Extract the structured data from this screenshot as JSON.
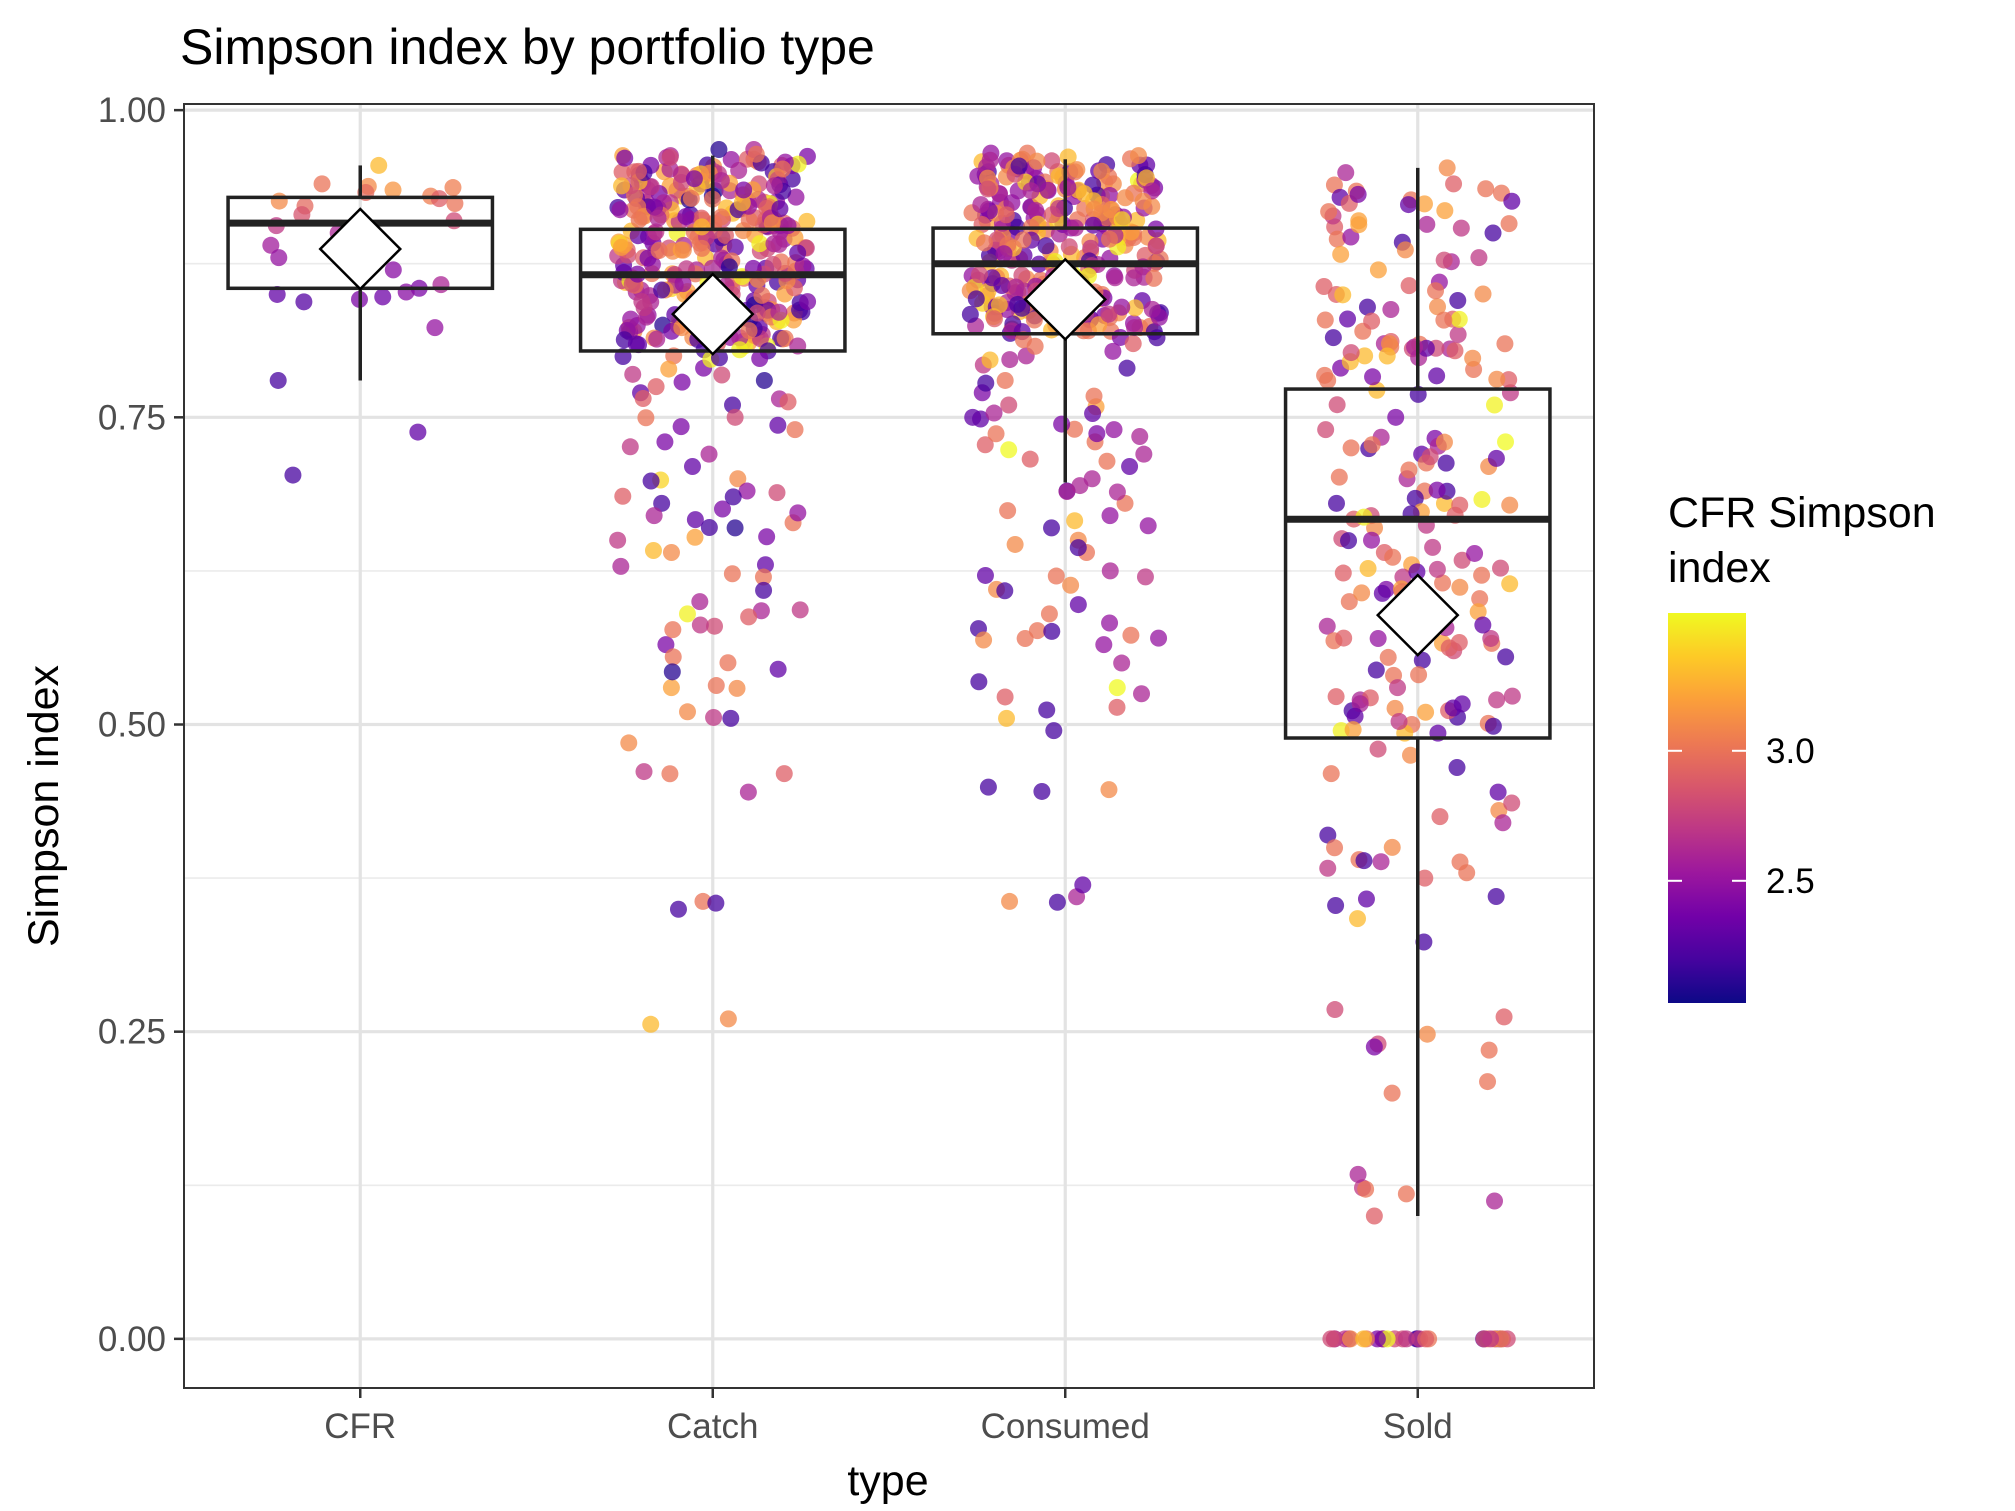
{
  "chart_data": {
    "type": "box",
    "title": "Simpson index by portfolio type",
    "xlabel": "type",
    "ylabel": "Simpson index",
    "categories": [
      "CFR",
      "Catch",
      "Consumed",
      "Sold"
    ],
    "ylim": [
      -0.04,
      1.005
    ],
    "yticks": [
      0.0,
      0.25,
      0.5,
      0.75,
      1.0
    ],
    "ytick_labels": [
      "0.00",
      "0.25",
      "0.50",
      "0.75",
      "1.00"
    ],
    "grid": true,
    "boxes": [
      {
        "category": "CFR",
        "lower_whisker": 0.78,
        "q1": 0.855,
        "median": 0.908,
        "q3": 0.929,
        "upper_whisker": 0.955,
        "mean": 0.887
      },
      {
        "category": "Catch",
        "lower_whisker": 0.804,
        "q1": 0.804,
        "median": 0.866,
        "q3": 0.903,
        "upper_whisker": 0.963,
        "mean": 0.834
      },
      {
        "category": "Consumed",
        "lower_whisker": 0.697,
        "q1": 0.818,
        "median": 0.875,
        "q3": 0.904,
        "upper_whisker": 0.96,
        "mean": 0.846
      },
      {
        "category": "Sold",
        "lower_whisker": 0.1,
        "q1": 0.489,
        "median": 0.667,
        "q3": 0.773,
        "upper_whisker": 0.953,
        "mean": 0.589
      }
    ],
    "points": {
      "CFR": {
        "y": [
          0.955,
          0.94,
          0.938,
          0.937,
          0.935,
          0.933,
          0.93,
          0.928,
          0.926,
          0.924,
          0.922,
          0.915,
          0.91,
          0.906,
          0.9,
          0.89,
          0.88,
          0.87,
          0.858,
          0.855,
          0.852,
          0.85,
          0.848,
          0.846,
          0.844,
          0.823,
          0.78,
          0.738,
          0.703
        ],
        "color": [
          3.3,
          3.0,
          3.1,
          3.05,
          3.15,
          2.95,
          3.05,
          2.9,
          3.1,
          3.0,
          2.95,
          2.85,
          2.8,
          2.7,
          2.6,
          2.55,
          2.5,
          2.45,
          2.6,
          2.4,
          2.45,
          2.3,
          2.35,
          2.4,
          2.25,
          2.5,
          2.2,
          2.3,
          2.2
        ]
      },
      "Catch": {
        "y": [
          0.963,
          0.96,
          0.958,
          0.955,
          0.95,
          0.946,
          0.94,
          0.935,
          0.93,
          0.925,
          0.92,
          0.915,
          0.91,
          0.905,
          0.9,
          0.895,
          0.89,
          0.885,
          0.88,
          0.875,
          0.87,
          0.865,
          0.86,
          0.855,
          0.85,
          0.845,
          0.84,
          0.835,
          0.83,
          0.825,
          0.82,
          0.815,
          0.81,
          0.805,
          0.8,
          0.79,
          0.785,
          0.78,
          0.775,
          0.77,
          0.765,
          0.76,
          0.75,
          0.74,
          0.73,
          0.72,
          0.71,
          0.7,
          0.69,
          0.68,
          0.67,
          0.66,
          0.65,
          0.64,
          0.63,
          0.62,
          0.6,
          0.59,
          0.58,
          0.565,
          0.555,
          0.545,
          0.53,
          0.505,
          0.485,
          0.46,
          0.445,
          0.356,
          0.256
        ],
        "color": [
          3.2,
          3.1,
          3.0,
          2.9,
          2.2,
          3.3,
          2.8,
          2.3,
          3.4,
          2.6,
          3.0,
          2.2,
          3.2,
          2.7,
          3.5,
          2.5,
          3.1,
          2.9,
          3.3,
          2.4,
          2.6,
          3.0,
          2.2,
          2.8,
          3.2,
          2.3,
          3.0,
          2.6,
          2.7,
          2.1,
          3.1,
          2.5,
          2.9,
          2.2,
          3.0,
          2.4,
          2.7,
          2.1,
          2.9,
          2.3,
          2.6,
          2.2,
          2.8,
          3.0,
          2.4,
          2.6,
          2.3,
          3.1,
          2.5,
          2.2,
          2.6,
          2.1,
          2.7,
          3.1,
          2.3,
          3.0,
          2.6,
          3.5,
          2.8,
          2.4,
          3.0,
          2.3,
          3.2,
          2.2,
          3.1,
          2.9,
          2.6,
          3.0,
          3.3
        ],
        "count": 420
      },
      "Consumed": {
        "y": [
          0.96,
          0.958,
          0.955,
          0.95,
          0.945,
          0.94,
          0.935,
          0.93,
          0.925,
          0.92,
          0.915,
          0.91,
          0.905,
          0.9,
          0.895,
          0.89,
          0.885,
          0.88,
          0.875,
          0.87,
          0.865,
          0.86,
          0.855,
          0.85,
          0.845,
          0.84,
          0.835,
          0.83,
          0.825,
          0.82,
          0.815,
          0.81,
          0.8,
          0.79,
          0.78,
          0.77,
          0.76,
          0.75,
          0.74,
          0.73,
          0.72,
          0.71,
          0.7,
          0.69,
          0.68,
          0.67,
          0.66,
          0.65,
          0.64,
          0.625,
          0.61,
          0.59,
          0.578,
          0.57,
          0.565,
          0.55,
          0.53,
          0.525,
          0.505,
          0.495,
          0.449,
          0.447,
          0.356
        ],
        "color": [
          3.2,
          3.3,
          2.9,
          3.0,
          2.2,
          3.1,
          2.7,
          3.4,
          2.5,
          3.0,
          2.3,
          3.2,
          2.8,
          3.5,
          2.4,
          3.1,
          2.6,
          3.0,
          2.2,
          2.9,
          3.3,
          2.5,
          2.7,
          3.0,
          2.3,
          2.6,
          3.1,
          2.2,
          2.8,
          3.0,
          2.4,
          2.9,
          2.6,
          2.2,
          3.0,
          2.4,
          2.8,
          2.3,
          2.5,
          3.0,
          2.6,
          2.3,
          2.6,
          2.2,
          3.0,
          2.5,
          2.2,
          3.1,
          3.0,
          2.6,
          3.1,
          3.0,
          2.2,
          3.0,
          2.5,
          2.6,
          3.6,
          2.6,
          3.3,
          2.2,
          2.2,
          3.1,
          3.1
        ],
        "count": 380
      },
      "Sold": {
        "y": [
          0.953,
          0.927,
          0.91,
          0.905,
          0.9,
          0.895,
          0.88,
          0.87,
          0.86,
          0.85,
          0.84,
          0.83,
          0.82,
          0.81,
          0.8,
          0.79,
          0.78,
          0.77,
          0.76,
          0.75,
          0.74,
          0.73,
          0.72,
          0.71,
          0.7,
          0.69,
          0.68,
          0.67,
          0.66,
          0.65,
          0.64,
          0.63,
          0.62,
          0.61,
          0.6,
          0.59,
          0.58,
          0.57,
          0.56,
          0.555,
          0.54,
          0.53,
          0.52,
          0.51,
          0.5,
          0.495,
          0.48,
          0.475,
          0.465,
          0.46,
          0.445,
          0.43,
          0.425,
          0.42,
          0.41,
          0.4,
          0.39,
          0.383,
          0.375,
          0.36,
          0.358,
          0.342,
          0.323,
          0.268,
          0.262,
          0.24,
          0.235,
          0.2,
          0.123,
          0.118,
          0.1
        ],
        "color": [
          3.1,
          3.0,
          3.2,
          2.9,
          2.2,
          3.0,
          2.7,
          3.2,
          2.5,
          2.9,
          3.1,
          2.3,
          3.0,
          2.6,
          3.3,
          2.4,
          3.0,
          2.7,
          3.5,
          2.4,
          2.8,
          3.6,
          2.3,
          3.1,
          2.6,
          3.0,
          2.2,
          2.8,
          3.1,
          2.5,
          2.9,
          3.2,
          2.7,
          2.4,
          3.0,
          3.3,
          2.6,
          2.5,
          2.8,
          2.2,
          3.0,
          2.7,
          2.6,
          3.2,
          3.0,
          3.5,
          2.8,
          3.1,
          2.2,
          3.0,
          2.3,
          3.1,
          2.9,
          2.6,
          2.2,
          3.1,
          3.0,
          2.7,
          2.9,
          2.2,
          2.3,
          3.3,
          2.2,
          2.8,
          2.9,
          2.8,
          3.0,
          3.0,
          2.7,
          3.0,
          2.9
        ],
        "zeros_count": 30,
        "count": 230
      }
    },
    "legend": {
      "title_line1": "CFR Simpson",
      "title_line2": "index",
      "labels": [
        "3.0",
        "2.5"
      ],
      "values": [
        3.0,
        2.5
      ],
      "range": [
        2.03,
        3.53
      ],
      "placement": "right",
      "palette": [
        "#0d0887",
        "#46039f",
        "#7201a8",
        "#9c179e",
        "#bd3786",
        "#d8576b",
        "#ed7953",
        "#fb9f3a",
        "#fdca26",
        "#f0f921"
      ]
    }
  }
}
